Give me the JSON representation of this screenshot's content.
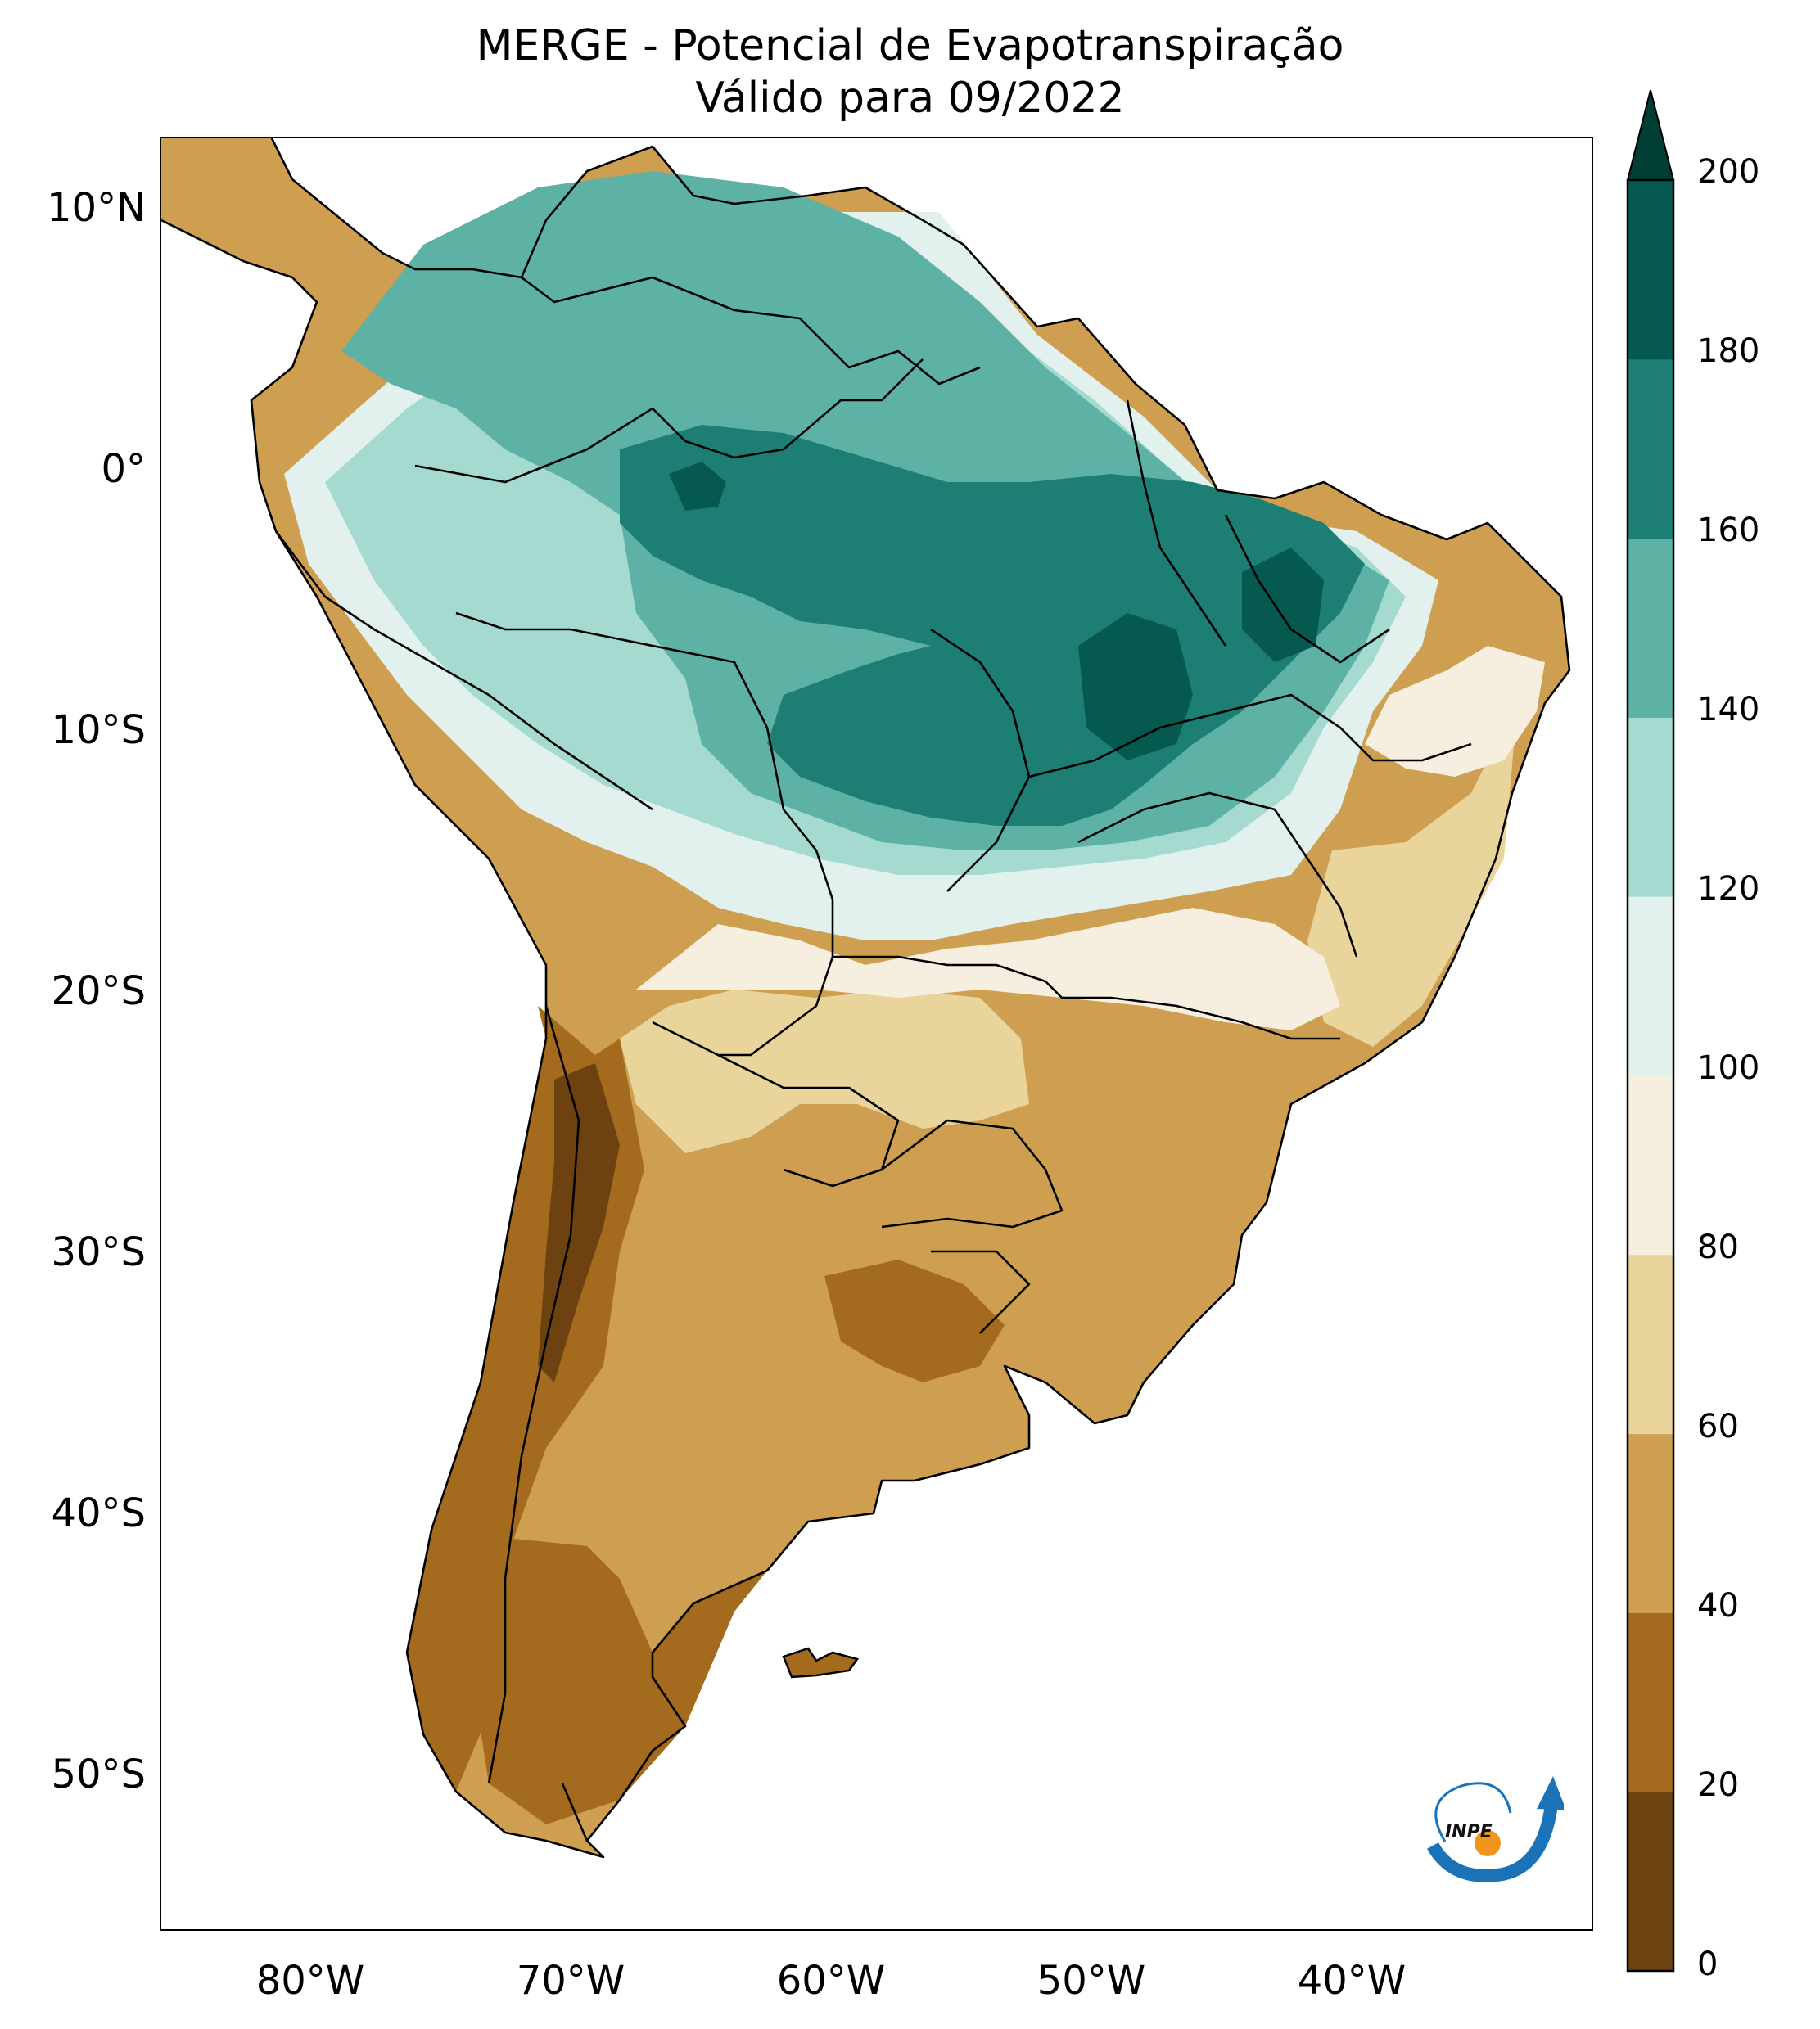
{
  "title": {
    "line1": "MERGE - Potencial de Evapotranspiração",
    "line2": "Válido para 09/2022"
  },
  "axes": {
    "lat_ticks": [
      "10°N",
      "0°",
      "10°S",
      "20°S",
      "30°S",
      "40°S",
      "50°S"
    ],
    "lon_ticks": [
      "80°W",
      "70°W",
      "60°W",
      "50°W",
      "40°W"
    ]
  },
  "colorbar": {
    "labels": [
      "0",
      "20",
      "40",
      "60",
      "80",
      "100",
      "120",
      "140",
      "160",
      "180",
      "200"
    ],
    "bins": [
      {
        "range": "0-20",
        "color": "#6e4210"
      },
      {
        "range": "20-40",
        "color": "#a46a1e"
      },
      {
        "range": "40-60",
        "color": "#ce9f50"
      },
      {
        "range": "60-80",
        "color": "#e9d49c"
      },
      {
        "range": "80-100",
        "color": "#f6efdf"
      },
      {
        "range": "100-120",
        "color": "#e2f1ee"
      },
      {
        "range": "120-140",
        "color": "#a4dad0"
      },
      {
        "range": "140-160",
        "color": "#5eb1a5"
      },
      {
        "range": "160-180",
        "color": "#1d7e74"
      },
      {
        "range": "180-200",
        "color": "#06594e"
      }
    ],
    "extend_color": "#003d33"
  },
  "logo": {
    "text": "INPE",
    "colors": {
      "arrow": "#1a73b8",
      "dot": "#f0941c"
    }
  }
}
